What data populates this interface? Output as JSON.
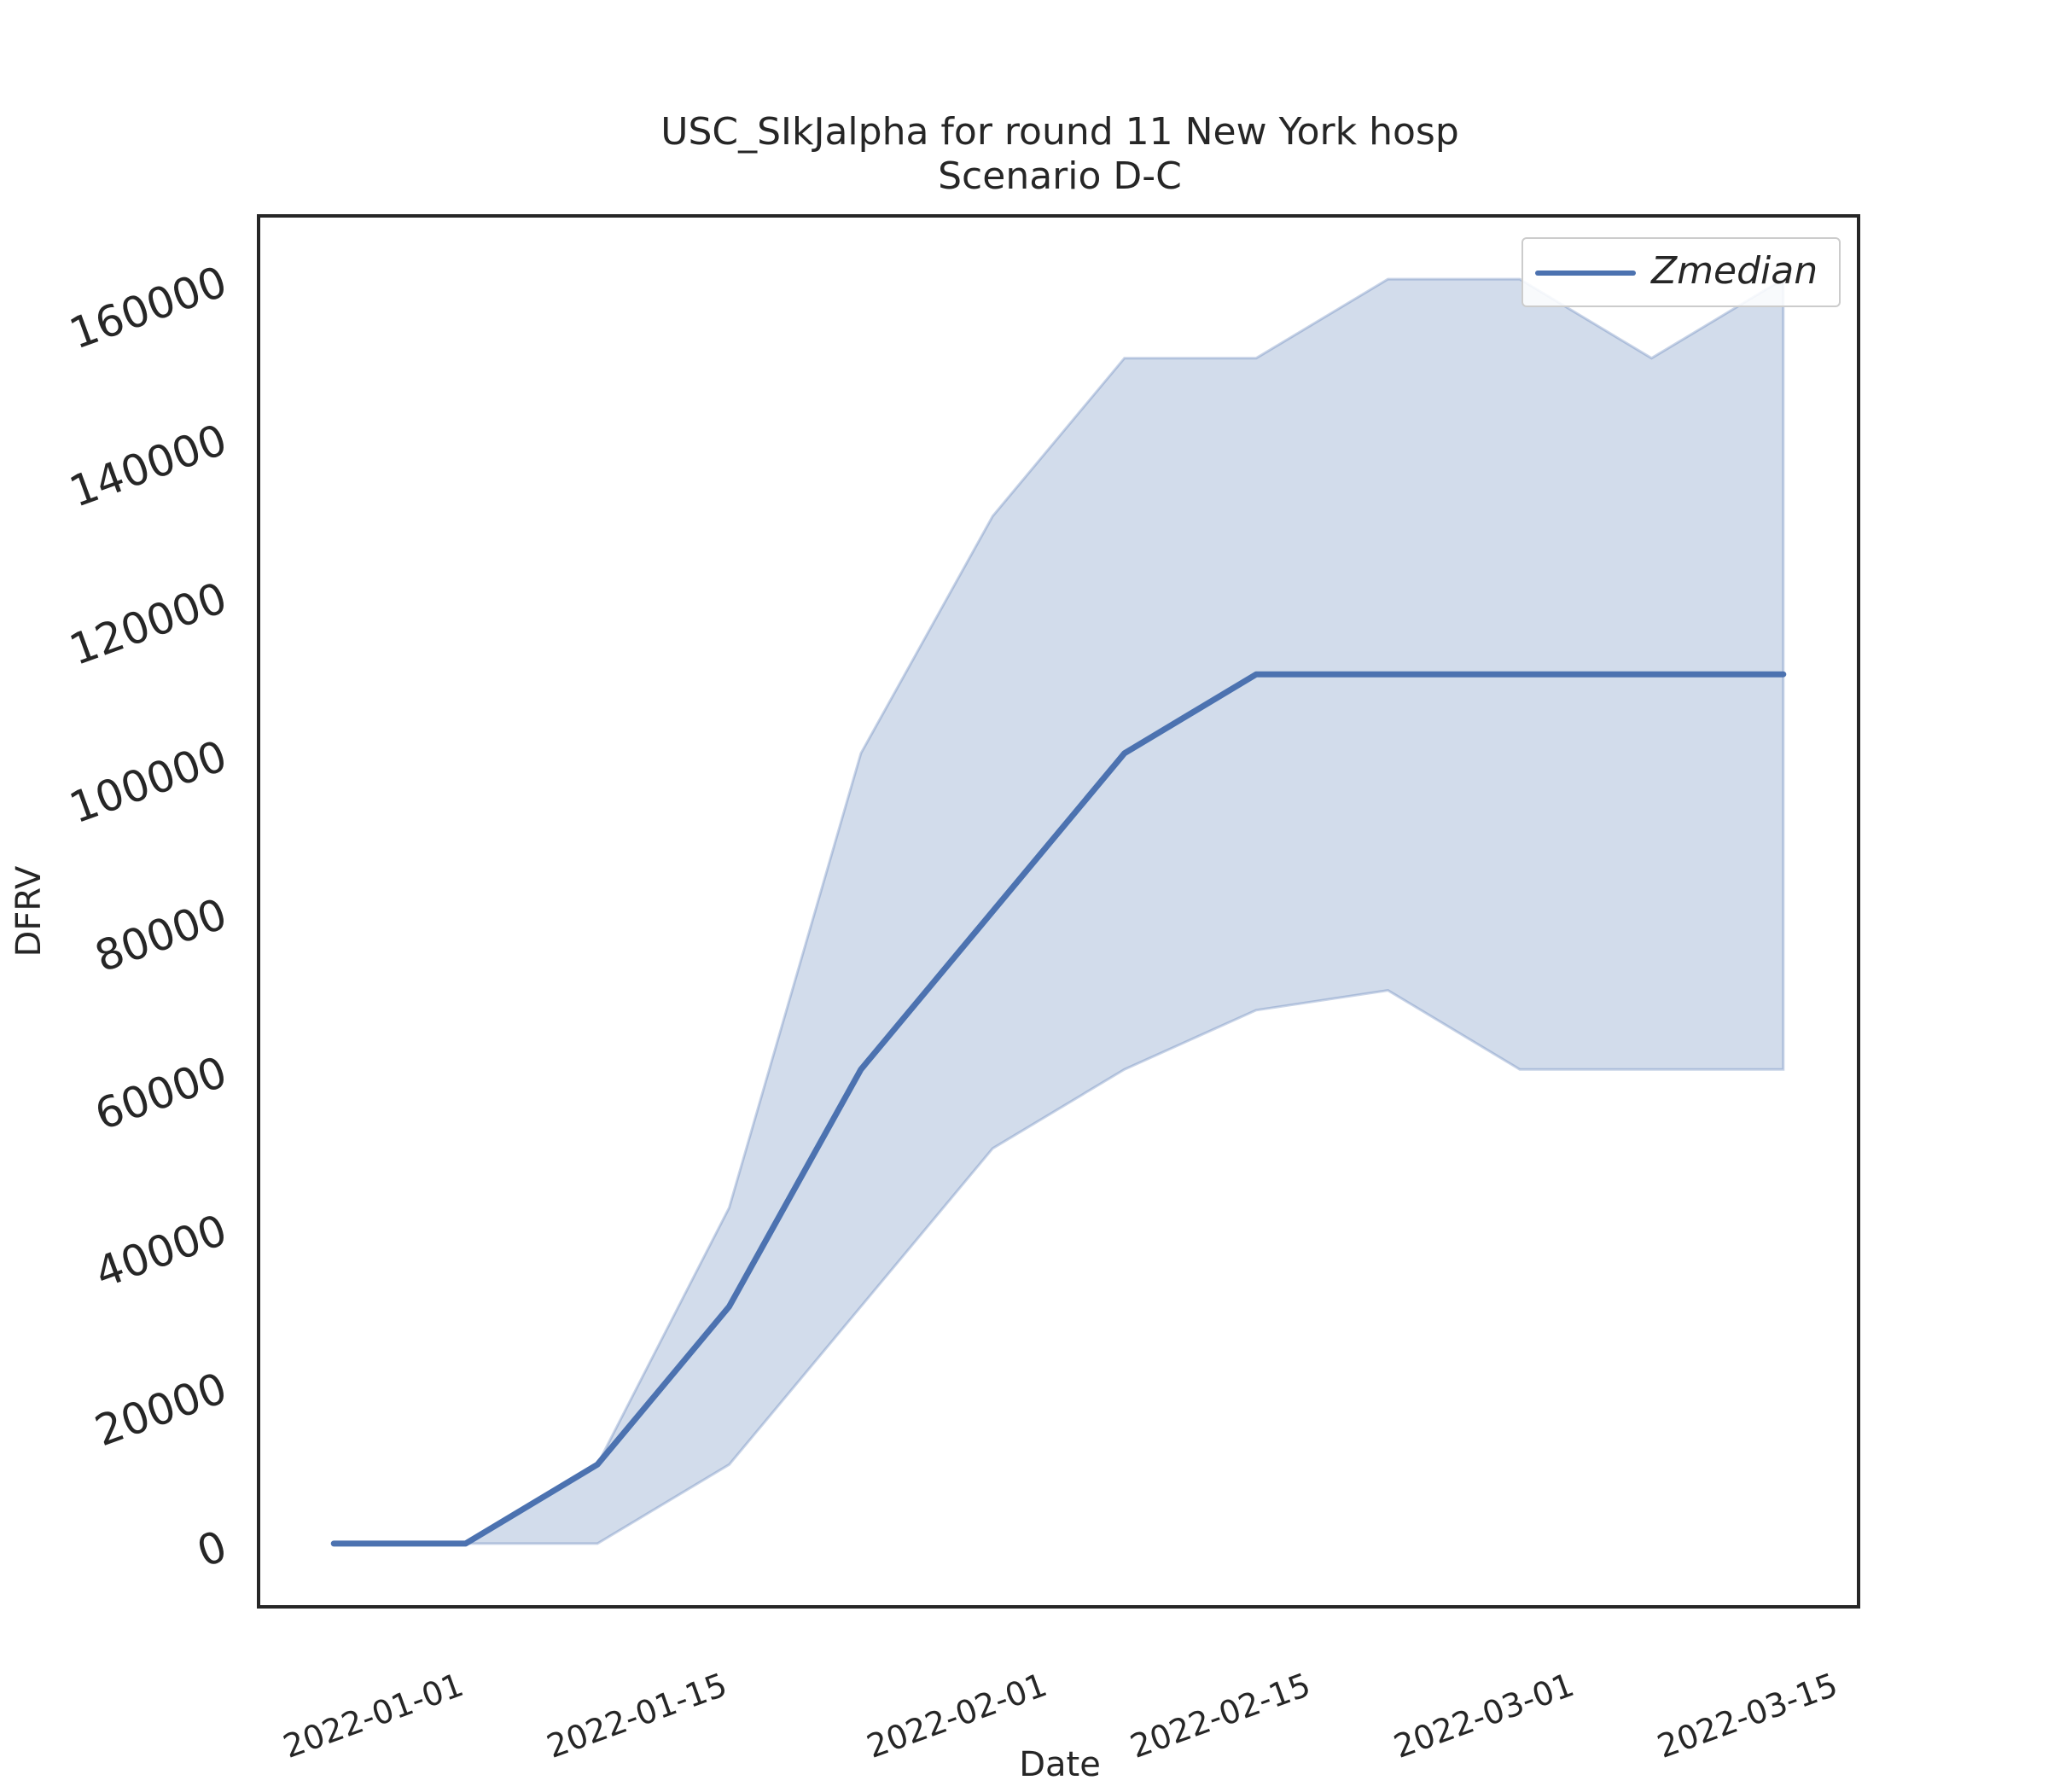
{
  "chart_data": {
    "type": "line",
    "title": "USC_SIkJalpha for round 11 New York hosp",
    "subtitle": "Scenario D-C",
    "xlabel": "Date",
    "ylabel": "DFRV",
    "x": [
      "2021-12-25",
      "2022-01-01",
      "2022-01-08",
      "2022-01-15",
      "2022-01-22",
      "2022-01-29",
      "2022-02-05",
      "2022-02-12",
      "2022-02-19",
      "2022-02-26",
      "2022-03-05",
      "2022-03-12"
    ],
    "series": [
      {
        "name": "Zmedian",
        "values": [
          0,
          0,
          10000,
          30000,
          60000,
          80000,
          100000,
          110000,
          110000,
          110000,
          110000,
          110000
        ]
      }
    ],
    "band": {
      "lower": [
        0,
        0,
        0,
        10000,
        30000,
        50000,
        60000,
        67500,
        70000,
        60000,
        60000,
        60000
      ],
      "upper": [
        0,
        0,
        10000,
        42500,
        100000,
        130000,
        150000,
        150000,
        160000,
        160000,
        150000,
        160000
      ]
    },
    "xticks": [
      "2022-01-01",
      "2022-01-15",
      "2022-02-01",
      "2022-02-15",
      "2022-03-01",
      "2022-03-15"
    ],
    "yticks": [
      0,
      20000,
      40000,
      60000,
      80000,
      100000,
      120000,
      140000,
      160000
    ],
    "xlim": [
      "2021-12-21",
      "2022-03-16"
    ],
    "ylim": [
      -8000,
      168000
    ],
    "legend": "top-right",
    "grid": false,
    "colors": {
      "line": "#4c72b0",
      "band": "#4c72b0",
      "axes": "#262626"
    }
  }
}
